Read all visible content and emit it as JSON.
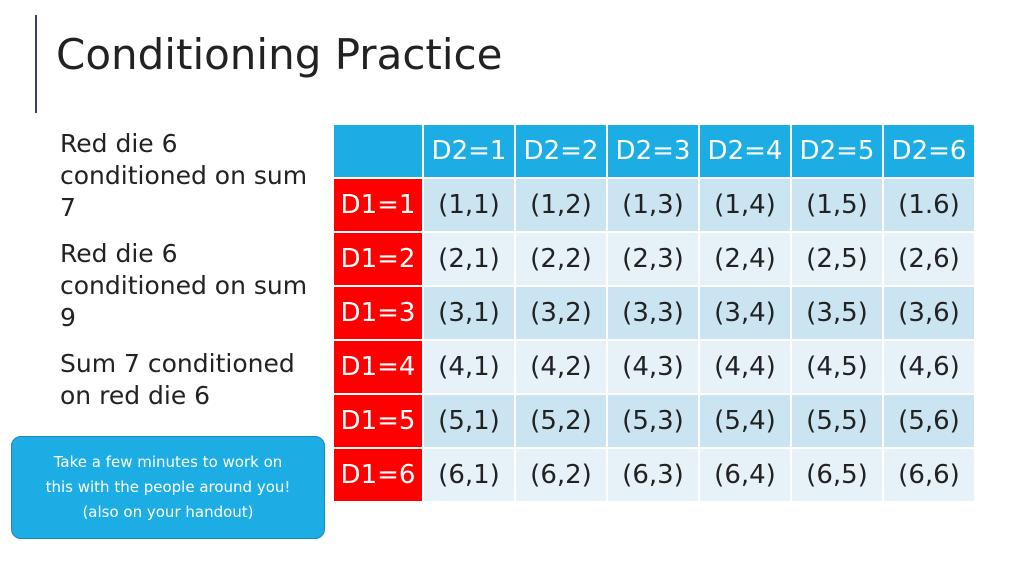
{
  "title": "Conditioning Practice",
  "bullets": [
    "Red die 6 conditioned on sum 7",
    "Red die 6 conditioned on sum 9",
    "Sum 7 conditioned on red die 6"
  ],
  "callout": {
    "lines": [
      "Take a few minutes to work on",
      "this with the people around you!",
      "(also on your handout)"
    ]
  },
  "table": {
    "columns": [
      "D2=1",
      "D2=2",
      "D2=3",
      "D2=4",
      "D2=5",
      "D2=6"
    ],
    "rows": [
      {
        "label": "D1=1",
        "cells": [
          "(1,1)",
          "(1,2)",
          "(1,3)",
          "(1,4)",
          "(1,5)",
          "(1.6)"
        ]
      },
      {
        "label": "D1=2",
        "cells": [
          "(2,1)",
          "(2,2)",
          "(2,3)",
          "(2,4)",
          "(2,5)",
          "(2,6)"
        ]
      },
      {
        "label": "D1=3",
        "cells": [
          "(3,1)",
          "(3,2)",
          "(3,3)",
          "(3,4)",
          "(3,5)",
          "(3,6)"
        ]
      },
      {
        "label": "D1=4",
        "cells": [
          "(4,1)",
          "(4,2)",
          "(4,3)",
          "(4,4)",
          "(4,5)",
          "(4,6)"
        ]
      },
      {
        "label": "D1=5",
        "cells": [
          "(5,1)",
          "(5,2)",
          "(5,3)",
          "(5,4)",
          "(5,5)",
          "(5,6)"
        ]
      },
      {
        "label": "D1=6",
        "cells": [
          "(6,1)",
          "(6,2)",
          "(6,3)",
          "(6,4)",
          "(6,5)",
          "(6,6)"
        ]
      }
    ]
  },
  "colors": {
    "header_blue": "#1cade4",
    "row_header_red": "#ff0000",
    "cell_dark": "#cbe4f2",
    "cell_light": "#e6f1f8",
    "accent_line": "#3b3f73"
  }
}
